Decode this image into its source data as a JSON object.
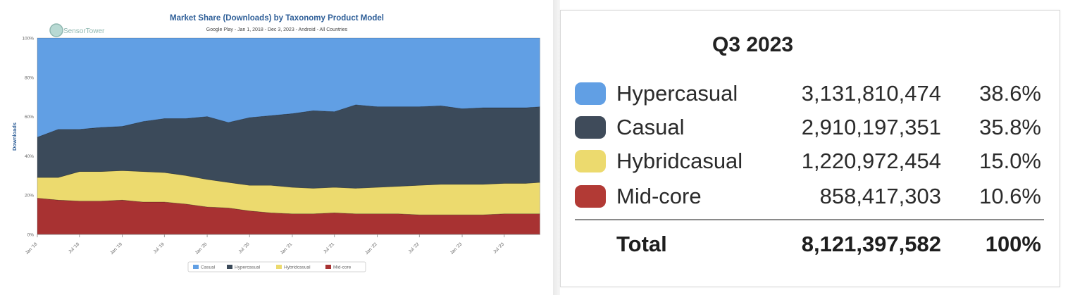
{
  "chart_data": [
    {
      "type": "area",
      "stacked": true,
      "normalized": true,
      "title": "Market Share (Downloads) by Taxonomy Product Model",
      "subtitle": "Google Play - Jan 1, 2018 - Dec 3, 2023 - Android - All Countries",
      "brand": "SensorTower",
      "ylabel": "Downloads",
      "xlabel": "",
      "ylim": [
        0,
        100
      ],
      "y_ticks": [
        "0%",
        "20%",
        "40%",
        "60%",
        "80%",
        "100%"
      ],
      "x": [
        "2018-01",
        "2018-04",
        "2018-07",
        "2018-10",
        "2019-01",
        "2019-04",
        "2019-07",
        "2019-10",
        "2020-01",
        "2020-04",
        "2020-07",
        "2020-10",
        "2021-01",
        "2021-04",
        "2021-07",
        "2021-10",
        "2022-01",
        "2022-04",
        "2022-07",
        "2022-10",
        "2023-01",
        "2023-04",
        "2023-07",
        "2023-10",
        "2023-12"
      ],
      "x_ticks": [
        "Jan '18",
        "Jul '18",
        "Jan '19",
        "Jul '19",
        "Jan '20",
        "Jul '20",
        "Jan '21",
        "Jul '21",
        "Jan '22",
        "Jul '22",
        "Jan '23",
        "Jul '23"
      ],
      "series": [
        {
          "name": "Mid-core",
          "color": "#a83232",
          "values": [
            18.5,
            17.5,
            17,
            17,
            17.5,
            16.5,
            16.5,
            15.5,
            14,
            13.5,
            12,
            11,
            10.5,
            10.5,
            11,
            10.5,
            10.5,
            10.5,
            10,
            10,
            10,
            10,
            10.5,
            10.5,
            10.5
          ]
        },
        {
          "name": "Hybridcasual",
          "color": "#ecda6e",
          "values": [
            10.5,
            11.5,
            15,
            15,
            15,
            15.5,
            15,
            14.5,
            14,
            13,
            13,
            14,
            13.5,
            13,
            13,
            13,
            13.5,
            14,
            15,
            15.5,
            15.5,
            15.5,
            15.5,
            15.5,
            16
          ]
        },
        {
          "name": "Hypercasual",
          "color": "#3b4a5a",
          "values": [
            20.5,
            24.5,
            21.5,
            22.5,
            22.5,
            25.5,
            27.5,
            29,
            32,
            30.5,
            34.5,
            35.5,
            37.5,
            39.5,
            38.5,
            42.5,
            41,
            40.5,
            40,
            40,
            38.5,
            39,
            38.5,
            38.5,
            38.5
          ]
        },
        {
          "name": "Casual",
          "color": "#619fe4",
          "values": [
            50.5,
            46.5,
            46.5,
            45.5,
            45,
            42.5,
            41,
            41,
            40,
            43,
            40.5,
            39.5,
            38.5,
            37,
            37.5,
            34,
            35,
            35,
            35,
            34.5,
            36,
            35.5,
            35.5,
            35.5,
            35
          ]
        }
      ],
      "legend": {
        "position": "bottom",
        "items": [
          "Casual",
          "Hypercasual",
          "Hybridcasual",
          "Mid-core"
        ]
      },
      "grid": false
    },
    {
      "type": "table",
      "title": "Q3 2023",
      "rows": [
        {
          "name": "Hypercasual",
          "value": "3,131,810,474",
          "pct": "38.6%",
          "color": "#619fe4"
        },
        {
          "name": "Casual",
          "value": "2,910,197,351",
          "pct": "35.8%",
          "color": "#3f4b5a"
        },
        {
          "name": "Hybridcasual",
          "value": "1,220,972,454",
          "pct": "15.0%",
          "color": "#ecda6e"
        },
        {
          "name": "Mid-core",
          "value": "858,417,303",
          "pct": "10.6%",
          "color": "#b23a35"
        }
      ],
      "total": {
        "name": "Total",
        "value": "8,121,397,582",
        "pct": "100%"
      }
    }
  ]
}
